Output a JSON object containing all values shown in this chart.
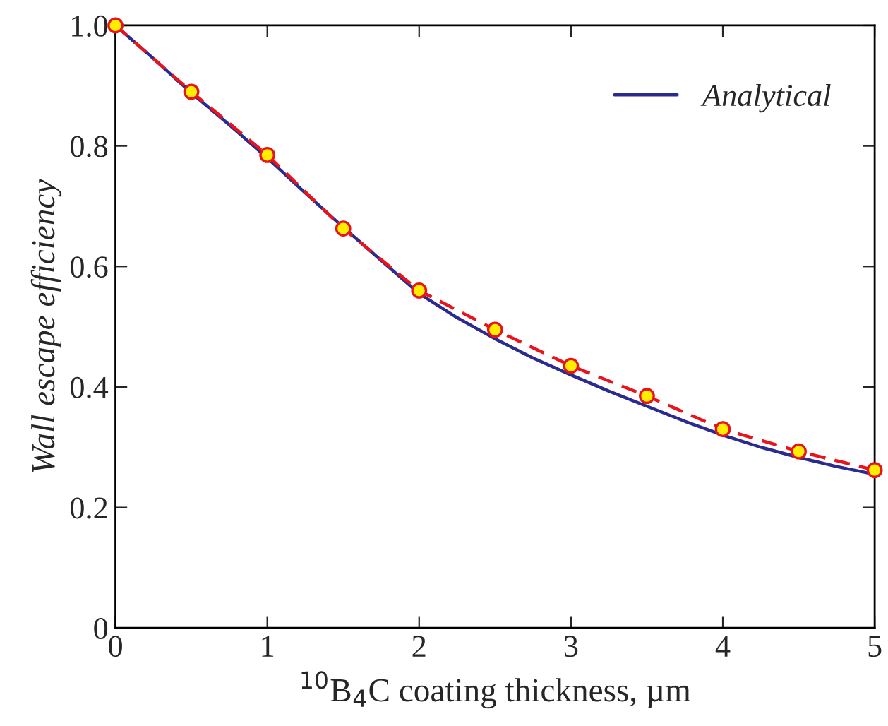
{
  "chart_data": {
    "type": "line",
    "xlabel": "$^{10}$B$_{4}$C coating thickness, µm",
    "ylabel": "Wall escape efficiency",
    "xlim": [
      0,
      5
    ],
    "ylim": [
      0,
      1
    ],
    "xticks": [
      0,
      1,
      2,
      3,
      4,
      5
    ],
    "yticks": [
      0,
      {
        "value": 0.2,
        "label": "0.2"
      },
      {
        "value": 0.4,
        "label": "0.4"
      },
      {
        "value": 0.6,
        "label": "0.6"
      },
      {
        "value": 0.8,
        "label": "0.8"
      },
      {
        "value": 1,
        "label": "1.0"
      }
    ],
    "grid": false,
    "legend": "top right",
    "series": [
      {
        "name": "Analytical",
        "color": "#2b2a8f",
        "marker": "none",
        "line_style": "solid",
        "x": [
          0,
          0.25,
          0.5,
          0.75,
          1,
          1.25,
          1.5,
          1.75,
          2,
          2.25,
          2.5,
          2.75,
          3,
          3.25,
          3.5,
          3.75,
          4,
          4.25,
          4.5,
          4.75,
          5
        ],
        "values": [
          1.0,
          0.945,
          0.888,
          0.835,
          0.78,
          0.722,
          0.665,
          0.61,
          0.555,
          0.515,
          0.48,
          0.448,
          0.42,
          0.393,
          0.368,
          0.343,
          0.32,
          0.3,
          0.283,
          0.268,
          0.255
        ]
      },
      {
        "color": "#e8141c",
        "marker": "circle",
        "line_style": "dashed",
        "x": [
          0,
          0.5,
          1,
          1.5,
          2,
          2.5,
          3,
          3.5,
          4,
          4.5,
          5
        ],
        "values": [
          1.0,
          0.89,
          0.785,
          0.663,
          0.56,
          0.495,
          0.435,
          0.385,
          0.33,
          0.293,
          0.262
        ]
      }
    ]
  }
}
